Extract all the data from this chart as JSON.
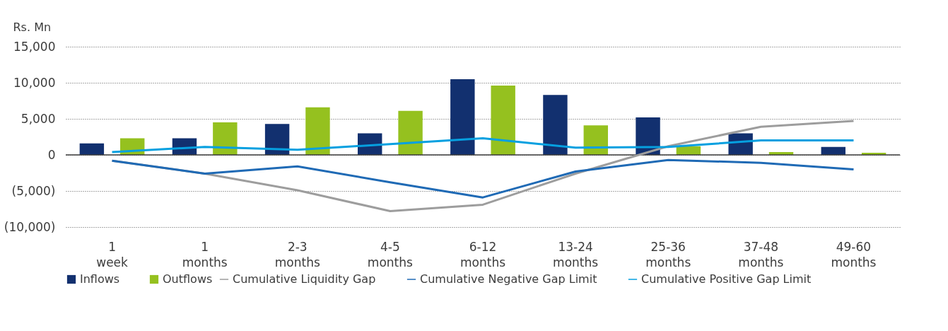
{
  "chart_data": {
    "type": "bar",
    "ylabel": "Rs. Mn",
    "categories": [
      "1 week",
      "1 months",
      "2-3 months",
      "4-5 months",
      "6-12 months",
      "13-24 months",
      "25-36 months",
      "37-48 months",
      "49-60 months"
    ],
    "series": [
      {
        "name": "Inflows",
        "color": "#12306f",
        "values": [
          1600,
          2300,
          4300,
          3000,
          10500,
          8300,
          5200,
          3000,
          1100
        ]
      },
      {
        "name": "Outflows",
        "color": "#95c11f",
        "values": [
          2300,
          4500,
          6600,
          6100,
          9600,
          4100,
          1200,
          400,
          300
        ]
      },
      {
        "name": "Cumulative Liquidity Gap",
        "type": "line",
        "color": "#9d9d9d",
        "values": [
          -800,
          -2600,
          -4900,
          -7800,
          -6900,
          -2600,
          1200,
          3900,
          4700
        ]
      },
      {
        "name": "Cumulative Negative Gap Limit",
        "type": "line",
        "color": "#1f6ab5",
        "values": [
          -800,
          -2600,
          -1600,
          -3800,
          -5900,
          -2300,
          -700,
          -1100,
          -2000
        ]
      },
      {
        "name": "Cumulative Positive Gap Limit",
        "type": "line",
        "color": "#06a0e0",
        "values": [
          400,
          1100,
          700,
          1500,
          2300,
          1000,
          1100,
          2000,
          2000
        ]
      }
    ],
    "ylim": [
      -10000,
      15000
    ],
    "yticks": [
      {
        "value": -10000,
        "label": "(10,000)"
      },
      {
        "value": -5000,
        "label": "(5,000)"
      },
      0,
      {
        "value": 5000,
        "label": "5,000"
      },
      {
        "value": 10000,
        "label": "10,000"
      },
      {
        "value": 15000,
        "label": "15,000"
      }
    ],
    "ref_lines": [
      {
        "axis": "y",
        "value": 0,
        "color": "#3c3c3c"
      }
    ],
    "grid": "y",
    "legend": "bottom",
    "marker": "none",
    "line_style": "solid"
  }
}
